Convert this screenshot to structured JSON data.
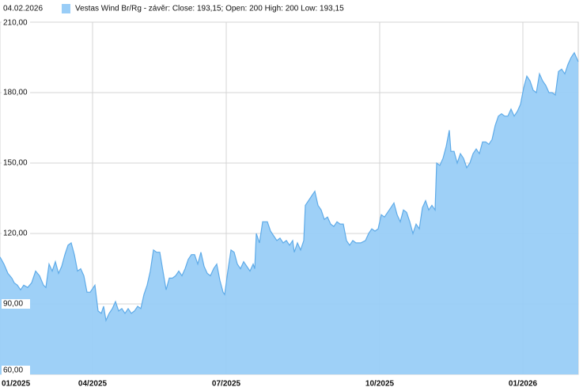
{
  "chart_data": {
    "type": "area",
    "date": "04.02.2026",
    "series": [
      {
        "name": "Vestas Wind Br/Rg - závěr: Close: 193,15; Open: 200 High: 200 Low: 193,15",
        "color": "#99cdf7",
        "values": [
          110,
          107,
          103,
          101,
          99,
          98,
          96,
          98,
          97,
          99,
          104,
          102,
          98,
          97,
          107,
          104,
          108,
          103,
          106,
          111,
          115,
          116,
          111,
          104,
          105,
          102,
          95,
          95,
          98,
          87,
          86,
          89,
          83,
          86,
          88,
          91,
          87,
          88,
          86,
          88,
          86,
          87,
          89,
          88,
          94,
          98,
          104,
          113,
          112,
          112,
          104,
          96,
          101,
          101,
          102,
          104,
          102,
          105,
          109,
          111,
          111,
          107,
          112,
          106,
          103,
          102,
          105,
          107,
          100,
          95,
          94,
          104,
          113,
          112,
          107,
          105,
          108,
          106,
          104,
          107,
          105,
          120,
          116,
          125,
          125,
          121,
          119,
          117,
          118,
          116,
          117,
          115,
          117,
          112,
          116,
          113,
          117,
          132,
          134,
          136,
          138,
          132,
          130,
          126,
          127,
          124,
          123,
          125,
          124,
          124,
          117,
          115,
          117,
          116,
          116,
          117,
          120,
          122,
          121,
          122,
          128,
          127,
          129,
          131,
          133,
          128,
          125,
          130,
          129,
          125,
          120,
          124,
          122,
          131,
          134,
          130,
          132,
          130,
          150,
          149,
          152,
          157,
          164,
          155,
          155,
          150,
          154,
          152,
          148,
          150,
          154,
          156,
          154,
          159,
          159,
          158,
          160,
          166,
          170,
          171,
          170,
          170,
          173,
          170,
          172,
          175,
          182,
          187,
          185,
          181,
          180,
          188,
          185,
          183,
          180,
          180,
          179,
          189,
          190,
          188,
          192,
          195,
          197,
          193.15
        ]
      }
    ],
    "x": [
      0,
      5,
      10,
      15,
      18,
      22,
      26,
      30,
      35,
      40,
      45,
      50,
      55,
      58,
      62,
      66,
      70,
      74,
      78,
      82,
      86,
      90,
      94,
      98,
      102,
      106,
      110,
      114,
      120,
      124,
      128,
      131,
      134,
      138,
      142,
      146,
      150,
      154,
      158,
      162,
      166,
      170,
      174,
      178,
      182,
      186,
      190,
      194,
      198,
      202,
      206,
      210,
      214,
      218,
      222,
      226,
      230,
      234,
      238,
      242,
      246,
      250,
      254,
      258,
      262,
      266,
      270,
      274,
      278,
      282,
      284,
      288,
      292,
      296,
      300,
      304,
      308,
      312,
      316,
      320,
      322,
      324,
      328,
      332,
      338,
      342,
      346,
      350,
      354,
      358,
      362,
      366,
      370,
      372,
      376,
      380,
      384,
      386,
      390,
      394,
      398,
      402,
      406,
      410,
      414,
      418,
      422,
      426,
      430,
      434,
      438,
      442,
      446,
      450,
      456,
      462,
      466,
      470,
      474,
      478,
      482,
      486,
      490,
      494,
      498,
      502,
      506,
      510,
      514,
      518,
      522,
      526,
      530,
      534,
      538,
      542,
      546,
      550,
      552,
      556,
      560,
      564,
      568,
      570,
      574,
      578,
      582,
      586,
      590,
      594,
      598,
      602,
      606,
      610,
      614,
      618,
      622,
      626,
      630,
      634,
      638,
      642,
      646,
      650,
      654,
      658,
      662,
      666,
      670,
      674,
      678,
      682,
      686,
      690,
      694,
      698,
      702,
      706,
      710,
      714,
      718,
      722,
      726,
      731
    ],
    "xlim": [
      0,
      731
    ],
    "xticks": [
      {
        "value": 0,
        "label": "01/2025"
      },
      {
        "value": 117,
        "label": "04/2025"
      },
      {
        "value": 286,
        "label": "07/2025"
      },
      {
        "value": 480,
        "label": "10/2025"
      },
      {
        "value": 661,
        "label": "01/2026"
      }
    ],
    "ylim": [
      60,
      210
    ],
    "yticks": [
      {
        "value": 60,
        "label": "60,00"
      },
      {
        "value": 90,
        "label": "90,00"
      },
      {
        "value": 120,
        "label": "120,00"
      },
      {
        "value": 150,
        "label": "150,00"
      },
      {
        "value": 180,
        "label": "180,00"
      },
      {
        "value": 210,
        "label": "210,00"
      }
    ],
    "grid": true
  }
}
